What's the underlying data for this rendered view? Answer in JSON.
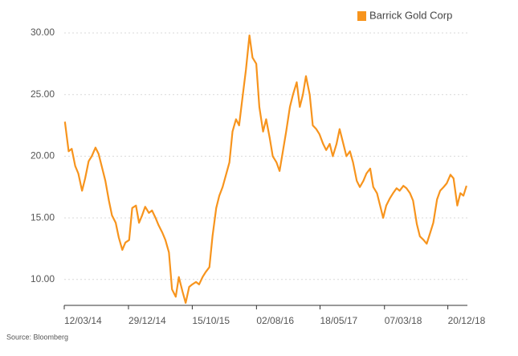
{
  "chart_data": {
    "type": "line",
    "source": "Source: Bloomberg",
    "legend": "top-right",
    "grid": true,
    "ylim": [
      7.9,
      30
    ],
    "yticks": [
      {
        "value": 10,
        "label": "10.00"
      },
      {
        "value": 15,
        "label": "15.00"
      },
      {
        "value": 20,
        "label": "20.00"
      },
      {
        "value": 25,
        "label": "25.00"
      },
      {
        "value": 30,
        "label": "30.00"
      }
    ],
    "xlim": [
      "2014-03-12",
      "2019-03-19"
    ],
    "xticks": [
      {
        "value": "2014-03-12",
        "label": "12/03/14"
      },
      {
        "value": "2014-12-29",
        "label": "29/12/14"
      },
      {
        "value": "2015-10-15",
        "label": "15/10/15"
      },
      {
        "value": "2016-08-02",
        "label": "02/08/16"
      },
      {
        "value": "2017-05-18",
        "label": "18/05/17"
      },
      {
        "value": "2018-03-07",
        "label": "07/03/18"
      },
      {
        "value": "2018-12-20",
        "label": "20/12/18"
      }
    ],
    "x": [
      "2014-03-15",
      "2014-04-01",
      "2014-04-15",
      "2014-05-01",
      "2014-05-15",
      "2014-06-01",
      "2014-06-15",
      "2014-07-01",
      "2014-07-15",
      "2014-08-01",
      "2014-08-15",
      "2014-09-01",
      "2014-09-15",
      "2014-10-01",
      "2014-10-15",
      "2014-11-01",
      "2014-11-15",
      "2014-12-01",
      "2014-12-15",
      "2015-01-01",
      "2015-01-15",
      "2015-02-01",
      "2015-02-15",
      "2015-03-01",
      "2015-03-15",
      "2015-04-01",
      "2015-04-15",
      "2015-05-01",
      "2015-05-15",
      "2015-06-01",
      "2015-06-15",
      "2015-07-01",
      "2015-07-15",
      "2015-08-01",
      "2015-08-15",
      "2015-09-01",
      "2015-09-15",
      "2015-10-01",
      "2015-10-15",
      "2015-11-01",
      "2015-11-15",
      "2015-12-01",
      "2015-12-15",
      "2016-01-01",
      "2016-01-15",
      "2016-02-01",
      "2016-02-15",
      "2016-03-01",
      "2016-03-15",
      "2016-04-01",
      "2016-04-15",
      "2016-05-01",
      "2016-05-15",
      "2016-06-01",
      "2016-06-15",
      "2016-07-01",
      "2016-07-15",
      "2016-08-01",
      "2016-08-15",
      "2016-09-01",
      "2016-09-15",
      "2016-10-01",
      "2016-10-15",
      "2016-11-01",
      "2016-11-15",
      "2016-12-01",
      "2016-12-15",
      "2017-01-01",
      "2017-01-15",
      "2017-02-01",
      "2017-02-15",
      "2017-03-01",
      "2017-03-15",
      "2017-04-01",
      "2017-04-15",
      "2017-05-01",
      "2017-05-15",
      "2017-06-01",
      "2017-06-15",
      "2017-07-01",
      "2017-07-15",
      "2017-08-01",
      "2017-08-15",
      "2017-09-01",
      "2017-09-15",
      "2017-10-01",
      "2017-10-15",
      "2017-11-01",
      "2017-11-15",
      "2017-12-01",
      "2017-12-15",
      "2018-01-01",
      "2018-01-15",
      "2018-02-01",
      "2018-02-15",
      "2018-03-01",
      "2018-03-15",
      "2018-04-01",
      "2018-04-15",
      "2018-05-01",
      "2018-05-15",
      "2018-06-01",
      "2018-06-15",
      "2018-07-01",
      "2018-07-15",
      "2018-08-01",
      "2018-08-15",
      "2018-09-01",
      "2018-09-15",
      "2018-10-01",
      "2018-10-15",
      "2018-11-01",
      "2018-11-15",
      "2018-12-01",
      "2018-12-15",
      "2019-01-01",
      "2019-01-15",
      "2019-02-01",
      "2019-02-15",
      "2019-03-01",
      "2019-03-15"
    ],
    "series": [
      {
        "name": "Barrick Gold Corp",
        "color": "#f7941d",
        "values": [
          22.8,
          20.4,
          20.6,
          19.2,
          18.6,
          17.2,
          18.2,
          19.6,
          20.0,
          20.7,
          20.2,
          19.0,
          18.0,
          16.4,
          15.2,
          14.6,
          13.4,
          12.4,
          13.0,
          13.2,
          15.8,
          16.0,
          14.6,
          15.2,
          15.9,
          15.4,
          15.6,
          15.0,
          14.4,
          13.8,
          13.2,
          12.2,
          9.2,
          8.6,
          10.2,
          9.0,
          8.1,
          9.4,
          9.6,
          9.8,
          9.6,
          10.2,
          10.6,
          11.0,
          13.5,
          15.8,
          16.8,
          17.5,
          18.4,
          19.5,
          22.0,
          23.0,
          22.5,
          25.0,
          27.0,
          29.8,
          28.0,
          27.5,
          24.0,
          22.0,
          23.0,
          21.5,
          20.0,
          19.5,
          18.8,
          20.5,
          22.0,
          24.0,
          25.0,
          26.0,
          24.0,
          25.0,
          26.5,
          25.0,
          22.5,
          22.2,
          21.8,
          21.0,
          20.5,
          21.0,
          20.0,
          21.0,
          22.2,
          21.0,
          20.0,
          20.4,
          19.5,
          18.0,
          17.5,
          18.0,
          18.6,
          19.0,
          17.5,
          17.0,
          16.0,
          15.0,
          16.0,
          16.6,
          17.0,
          17.4,
          17.2,
          17.6,
          17.4,
          17.0,
          16.4,
          14.5,
          13.5,
          13.2,
          12.9,
          13.8,
          14.6,
          16.5,
          17.2,
          17.5,
          17.8,
          18.5,
          18.2,
          16.0,
          17.0,
          16.8,
          17.6
        ]
      }
    ]
  }
}
